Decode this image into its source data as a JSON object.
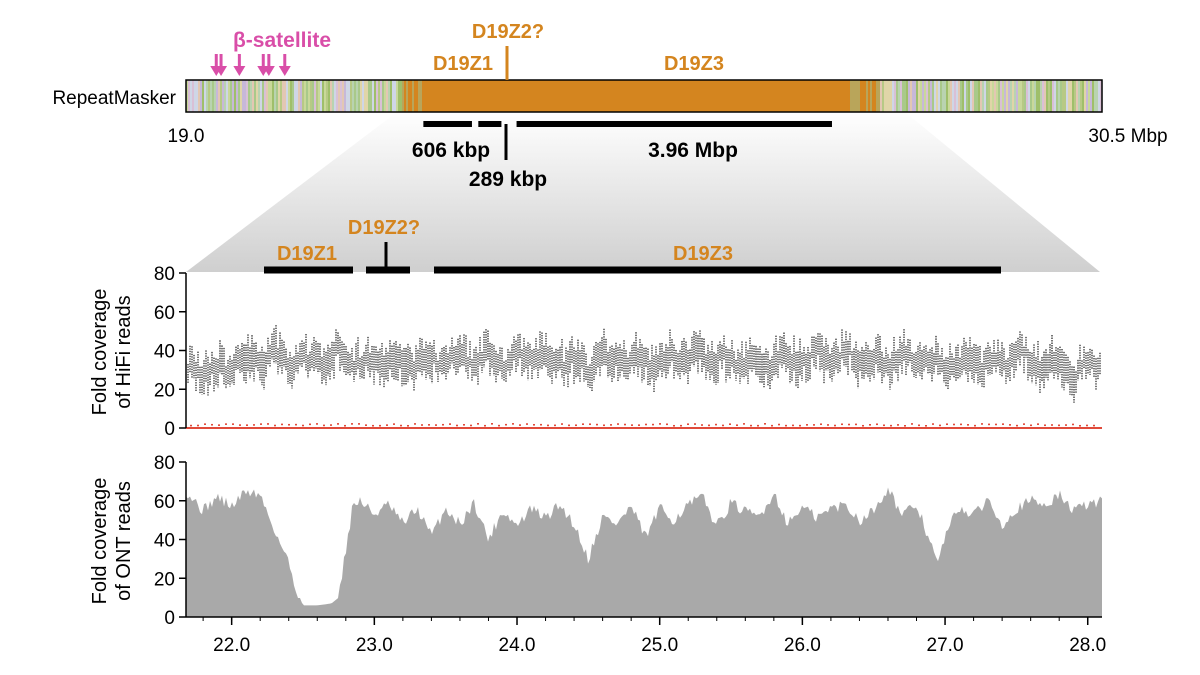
{
  "chart_data": [
    {
      "type": "bar",
      "panel": "repeatmasker-track",
      "track_label": "RepeatMasker",
      "x_start_label": "19.0",
      "x_end_label": "30.5 Mbp",
      "x_range": [
        19.0,
        30.5
      ],
      "arrays": [
        {
          "name": "D19Z1",
          "start": 21.98,
          "end": 22.59,
          "length_label": "606 kbp"
        },
        {
          "name": "D19Z2?",
          "start": 22.67,
          "end": 22.96,
          "length_label": "289 kbp"
        },
        {
          "name": "D19Z3",
          "start": 23.15,
          "end": 27.11,
          "length_label": "3.96 Mbp"
        }
      ],
      "beta_satellite": {
        "label": "β-satellite",
        "positions": [
          19.38,
          19.44,
          19.67,
          19.97,
          20.04,
          20.24
        ]
      },
      "colors": {
        "alpha_satellite": "#d4851f",
        "beta_satellite": "#d94ea8",
        "track_border": "#000000"
      }
    },
    {
      "type": "scatter",
      "panel": "hifi-coverage",
      "ylabel": "Fold coverage of HiFi reads",
      "ylim": [
        0,
        80
      ],
      "yticks": [
        "0",
        "20",
        "40",
        "60",
        "80"
      ],
      "x_range": [
        21.68,
        28.1
      ],
      "series": [
        {
          "name": "",
          "color": "#555555",
          "x": [
            21.7,
            21.9,
            22.1,
            22.3,
            22.5,
            22.7,
            22.9,
            23.1,
            23.3,
            23.5,
            23.7,
            23.9,
            24.1,
            24.3,
            24.5,
            24.7,
            24.9,
            25.1,
            25.3,
            25.5,
            25.7,
            25.9,
            26.1,
            26.3,
            26.5,
            26.7,
            26.9,
            27.1,
            27.3,
            27.5,
            27.7,
            27.9,
            28.08
          ],
          "y": [
            30,
            29,
            35,
            36,
            33,
            37,
            34,
            35,
            33,
            37,
            36,
            35,
            37,
            35,
            32,
            36,
            34,
            35,
            37,
            33,
            35,
            34,
            36,
            37,
            35,
            36,
            33,
            34,
            35,
            36,
            33,
            28,
            33
          ]
        }
      ],
      "secondary_color": "#e04a3a"
    },
    {
      "type": "area",
      "panel": "ont-coverage",
      "ylabel": "Fold coverage of ONT reads",
      "ylim": [
        0,
        80
      ],
      "yticks": [
        "0",
        "20",
        "40",
        "60",
        "80"
      ],
      "xticks": [
        "22.0",
        "23.0",
        "24.0",
        "25.0",
        "26.0",
        "27.0",
        "28.0"
      ],
      "x": [
        21.68,
        21.8,
        21.9,
        22.0,
        22.1,
        22.2,
        22.3,
        22.4,
        22.45,
        22.5,
        22.6,
        22.7,
        22.75,
        22.8,
        22.85,
        22.9,
        23.0,
        23.1,
        23.2,
        23.3,
        23.4,
        23.5,
        23.6,
        23.7,
        23.8,
        23.9,
        24.0,
        24.1,
        24.2,
        24.3,
        24.4,
        24.5,
        24.6,
        24.7,
        24.8,
        24.9,
        25.0,
        25.1,
        25.2,
        25.3,
        25.4,
        25.5,
        25.6,
        25.7,
        25.8,
        25.9,
        26.0,
        26.1,
        26.2,
        26.3,
        26.4,
        26.5,
        26.6,
        26.7,
        26.8,
        26.9,
        26.95,
        27.0,
        27.1,
        27.2,
        27.3,
        27.4,
        27.5,
        27.6,
        27.7,
        27.8,
        27.9,
        28.0,
        28.1
      ],
      "y": [
        65,
        55,
        62,
        57,
        65,
        63,
        45,
        28,
        15,
        6,
        6,
        7,
        10,
        35,
        58,
        60,
        53,
        58,
        48,
        56,
        42,
        56,
        48,
        59,
        40,
        55,
        47,
        56,
        51,
        58,
        48,
        30,
        52,
        48,
        57,
        41,
        56,
        50,
        58,
        62,
        47,
        59,
        54,
        52,
        64,
        48,
        57,
        51,
        56,
        58,
        50,
        55,
        67,
        52,
        58,
        38,
        27,
        42,
        57,
        52,
        61,
        48,
        56,
        60,
        58,
        63,
        55,
        58,
        60
      ],
      "color": "#a9a9a9"
    }
  ],
  "zoom_labels": {
    "d19z1": "D19Z1",
    "d19z2": "D19Z2?",
    "d19z3": "D19Z3"
  }
}
